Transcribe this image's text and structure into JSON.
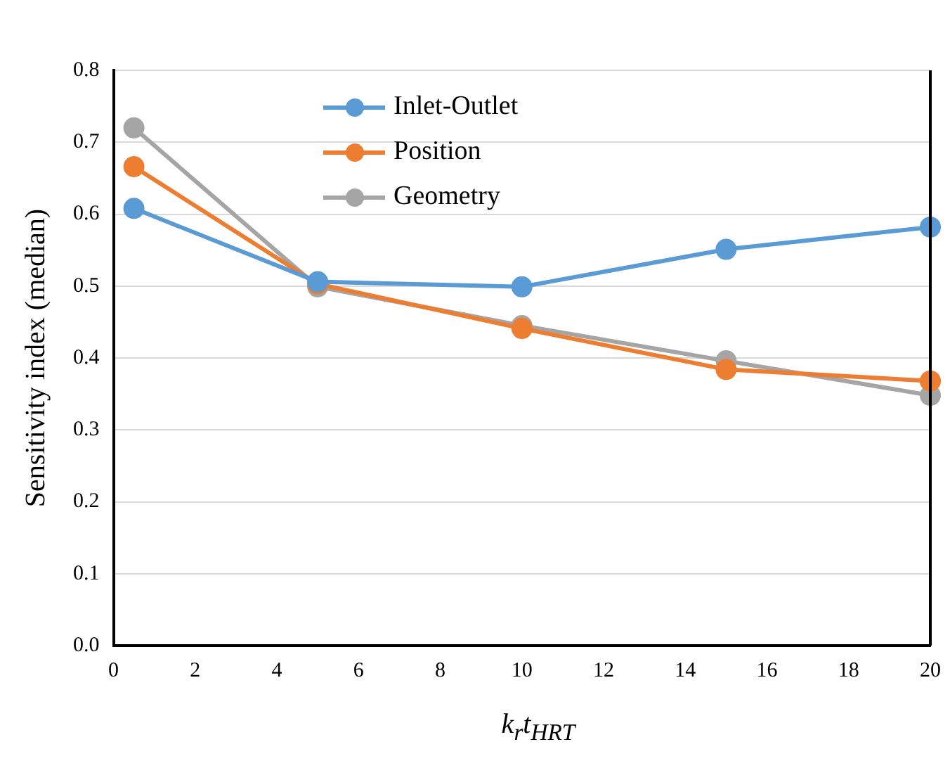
{
  "chart_data": {
    "type": "line",
    "xlabel": "k$_{r}$t$_{HRT}$",
    "ylabel": "Sensitivity index (median)",
    "x": [
      0.5,
      5,
      10,
      15,
      20
    ],
    "series": [
      {
        "name": "Inlet-Outlet",
        "color": "#5b9bd5",
        "values": [
          0.608,
          0.506,
          0.499,
          0.551,
          0.582
        ]
      },
      {
        "name": "Position",
        "color": "#ed7d31",
        "values": [
          0.666,
          0.503,
          0.441,
          0.384,
          0.368
        ]
      },
      {
        "name": "Geometry",
        "color": "#a5a5a5",
        "values": [
          0.72,
          0.499,
          0.445,
          0.396,
          0.348
        ]
      }
    ],
    "xlim": [
      0,
      20
    ],
    "xticks": [
      0,
      2,
      4,
      6,
      8,
      10,
      12,
      14,
      16,
      18,
      20
    ],
    "ylim": [
      0,
      0.8
    ],
    "yticks": [
      {
        "value": 0,
        "label": "0.0"
      },
      0.1,
      0.2,
      0.3,
      0.4,
      0.5,
      0.6,
      0.7,
      0.8
    ],
    "grid": "y",
    "legend": "top left",
    "marker": "circle",
    "line_style": "solid"
  }
}
